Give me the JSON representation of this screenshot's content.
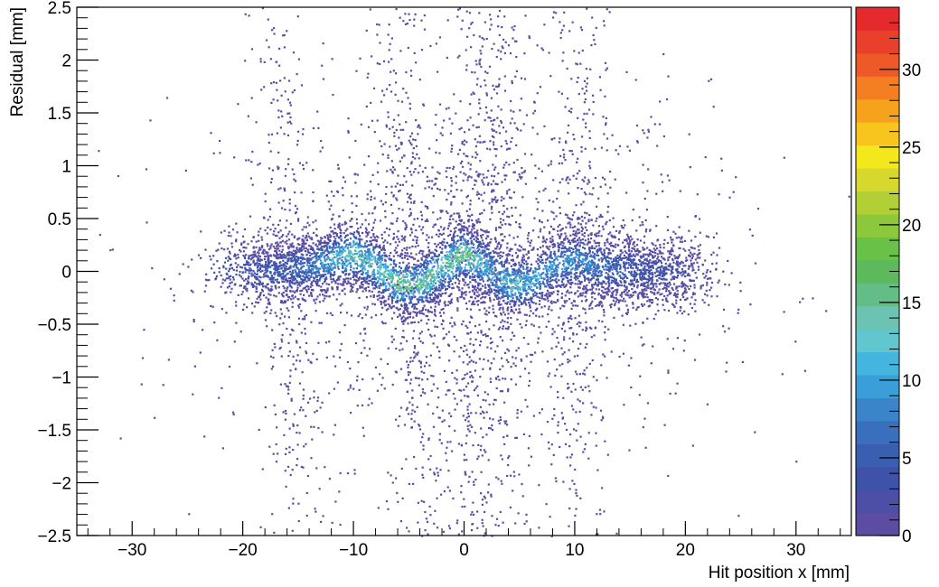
{
  "chart_data": {
    "type": "heatmap",
    "title": "",
    "xlabel": "Hit position x [mm]",
    "ylabel": "Residual [mm]",
    "xlim": [
      -35,
      35
    ],
    "ylim": [
      -2.5,
      2.5
    ],
    "x_ticks": [
      -30,
      -20,
      -10,
      0,
      10,
      20,
      30
    ],
    "x_tick_labels": [
      "−30",
      "−20",
      "−10",
      "0",
      "10",
      "20",
      "30"
    ],
    "y_ticks": [
      -2.5,
      -2,
      -1.5,
      -1,
      -0.5,
      0,
      0.5,
      1,
      1.5,
      2,
      2.5
    ],
    "y_tick_labels": [
      "−2.5",
      "−2",
      "−1.5",
      "−1",
      "−0.5",
      "0",
      "0.5",
      "1",
      "1.5",
      "2",
      "2.5"
    ],
    "grid": false,
    "colorbar": {
      "range": [
        0,
        34
      ],
      "ticks": [
        0,
        5,
        10,
        15,
        20,
        25,
        30
      ],
      "tick_labels": [
        "0",
        "5",
        "10",
        "15",
        "20",
        "25",
        "30"
      ],
      "palette": [
        "#5c4da3",
        "#4d4fa6",
        "#3f52a9",
        "#3a5fb0",
        "#3a6fbd",
        "#3b84c9",
        "#3a9ed8",
        "#44b5de",
        "#62c6cf",
        "#6cc3b1",
        "#64bd86",
        "#5cba5c",
        "#6ac148",
        "#8dc83c",
        "#b3cf36",
        "#d6d82e",
        "#f3e81c",
        "#f8c51e",
        "#f6a21d",
        "#f47e22",
        "#ee5a27",
        "#e8402a",
        "#e42a2c"
      ]
    },
    "band_profile": {
      "x": [
        -34,
        -30,
        -26,
        -22,
        -18,
        -14,
        -12,
        -10,
        -8,
        -6,
        -4,
        -2,
        0,
        2,
        4,
        6,
        8,
        10,
        12,
        16,
        20,
        24,
        30,
        34
      ],
      "center_y": [
        0,
        0,
        0,
        0.02,
        0.0,
        0.05,
        0.12,
        0.18,
        0.05,
        -0.12,
        -0.12,
        0.05,
        0.18,
        0.05,
        -0.12,
        -0.1,
        0.05,
        0.12,
        0.05,
        0.0,
        0.0,
        0.0,
        0,
        0
      ],
      "peak_count": [
        0,
        1,
        2,
        4,
        5,
        8,
        12,
        16,
        14,
        18,
        17,
        16,
        19,
        12,
        14,
        12,
        10,
        11,
        8,
        5,
        3,
        2,
        1,
        0
      ]
    },
    "vertical_spikes_x": [
      -16,
      -5,
      0.5,
      3,
      10
    ]
  }
}
